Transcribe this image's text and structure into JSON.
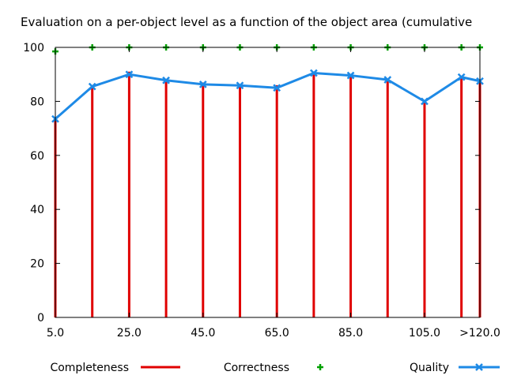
{
  "chart_data": {
    "type": "line",
    "title": "Evaluation on a per-object level as a function of the object area (cumulative",
    "xlabel": "",
    "ylabel": "",
    "x": [
      5,
      15,
      25,
      35,
      45,
      55,
      65,
      75,
      85,
      95,
      105,
      115,
      120
    ],
    "x_tick_values": [
      5,
      25,
      45,
      65,
      85,
      105,
      120
    ],
    "x_tick_labels": [
      "5.0",
      "25.0",
      "45.0",
      "65.0",
      "85.0",
      "105.0",
      ">120.0"
    ],
    "xlim": [
      5,
      120
    ],
    "ylim": [
      0,
      100
    ],
    "y_ticks": [
      0,
      20,
      40,
      60,
      80,
      100
    ],
    "grid": false,
    "legend_position": "bottom",
    "series": [
      {
        "name": "Completeness",
        "style": "impulses",
        "color": "#e00000",
        "values": [
          74,
          86,
          91,
          88,
          87,
          86,
          86,
          91,
          90,
          88,
          80,
          89,
          88
        ]
      },
      {
        "name": "Correctness",
        "style": "points",
        "color": "#00a000",
        "values": [
          98.5,
          100,
          100,
          100,
          100,
          100,
          100,
          100,
          100,
          100,
          100,
          100,
          100
        ]
      },
      {
        "name": "Quality",
        "style": "linespoints",
        "color": "#1e8ae6",
        "values": [
          73.5,
          85.5,
          90,
          87.8,
          86.3,
          85.9,
          85,
          90.5,
          89.6,
          88,
          80,
          89,
          87.5
        ]
      }
    ]
  }
}
